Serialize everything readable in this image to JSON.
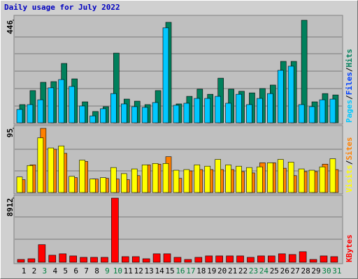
{
  "chart_data": [
    {
      "type": "bar",
      "title": "Daily usage for July 2022",
      "ylim": [
        0,
        446
      ],
      "yticks": [
        446
      ],
      "legend_separator": "/",
      "series": [
        {
          "name": "Hits",
          "color": "#00805c",
          "values": [
            79,
            140,
            176,
            179,
            258,
            191,
            91,
            49,
            70,
            303,
            103,
            94,
            79,
            140,
            437,
            82,
            115,
            146,
            124,
            194,
            146,
            137,
            130,
            149,
            164,
            267,
            267,
            446,
            91,
            127,
            121
          ]
        },
        {
          "name": "Files",
          "color": "#0040ff",
          "values": [
            null,
            null,
            null,
            null,
            null,
            null,
            null,
            null,
            null,
            null,
            null,
            null,
            null,
            null,
            null,
            null,
            null,
            null,
            null,
            null,
            null,
            null,
            null,
            null,
            null,
            null,
            null,
            null,
            null,
            null,
            null
          ]
        },
        {
          "name": "Pages",
          "color": "#00c8ff",
          "values": [
            58,
            79,
            100,
            152,
            188,
            158,
            73,
            30,
            61,
            127,
            82,
            70,
            67,
            88,
            413,
            76,
            85,
            106,
            106,
            115,
            85,
            124,
            79,
            106,
            127,
            228,
            246,
            79,
            70,
            100,
            103
          ]
        }
      ]
    },
    {
      "type": "bar",
      "ylim": [
        0,
        95
      ],
      "yticks": [
        95
      ],
      "legend_separator": "/",
      "series": [
        {
          "name": "Sites",
          "color": "#ff8000",
          "values": [
            19,
            41,
            95,
            64,
            58,
            22,
            46,
            20,
            21,
            20,
            19,
            25,
            41,
            42,
            53,
            21,
            32,
            34,
            34,
            34,
            34,
            31,
            29,
            44,
            44,
            36,
            25,
            31,
            31,
            42,
            34
          ]
        },
        {
          "name": "Visits",
          "color": "#ffff00",
          "values": [
            23,
            40,
            81,
            66,
            69,
            24,
            48,
            20,
            22,
            37,
            28,
            35,
            41,
            43,
            43,
            33,
            34,
            41,
            39,
            49,
            41,
            39,
            37,
            38,
            44,
            49,
            45,
            35,
            33,
            38,
            50
          ]
        }
      ]
    },
    {
      "type": "bar",
      "ylim": [
        0,
        8912
      ],
      "yticks": [
        8912
      ],
      "categories": [
        "1",
        "2",
        "3",
        "4",
        "5",
        "6",
        "7",
        "8",
        "9",
        "10",
        "11",
        "12",
        "13",
        "14",
        "15",
        "16",
        "17",
        "18",
        "19",
        "20",
        "21",
        "22",
        "23",
        "24",
        "25",
        "26",
        "27",
        "28",
        "29",
        "30",
        "31"
      ],
      "highlighted_categories": [
        "3",
        "9",
        "10",
        "16",
        "17",
        "23",
        "24",
        "30",
        "31"
      ],
      "category_color": "#000000",
      "highlight_color": "#008040",
      "series": [
        {
          "name": "KBytes",
          "color": "#ff0000",
          "values": [
            392,
            490,
            2448,
            979,
            1175,
            881,
            685,
            685,
            685,
            8912,
            783,
            783,
            490,
            1175,
            1175,
            685,
            392,
            685,
            881,
            881,
            881,
            881,
            685,
            881,
            881,
            1175,
            1077,
            1469,
            392,
            881,
            783
          ]
        }
      ]
    }
  ]
}
